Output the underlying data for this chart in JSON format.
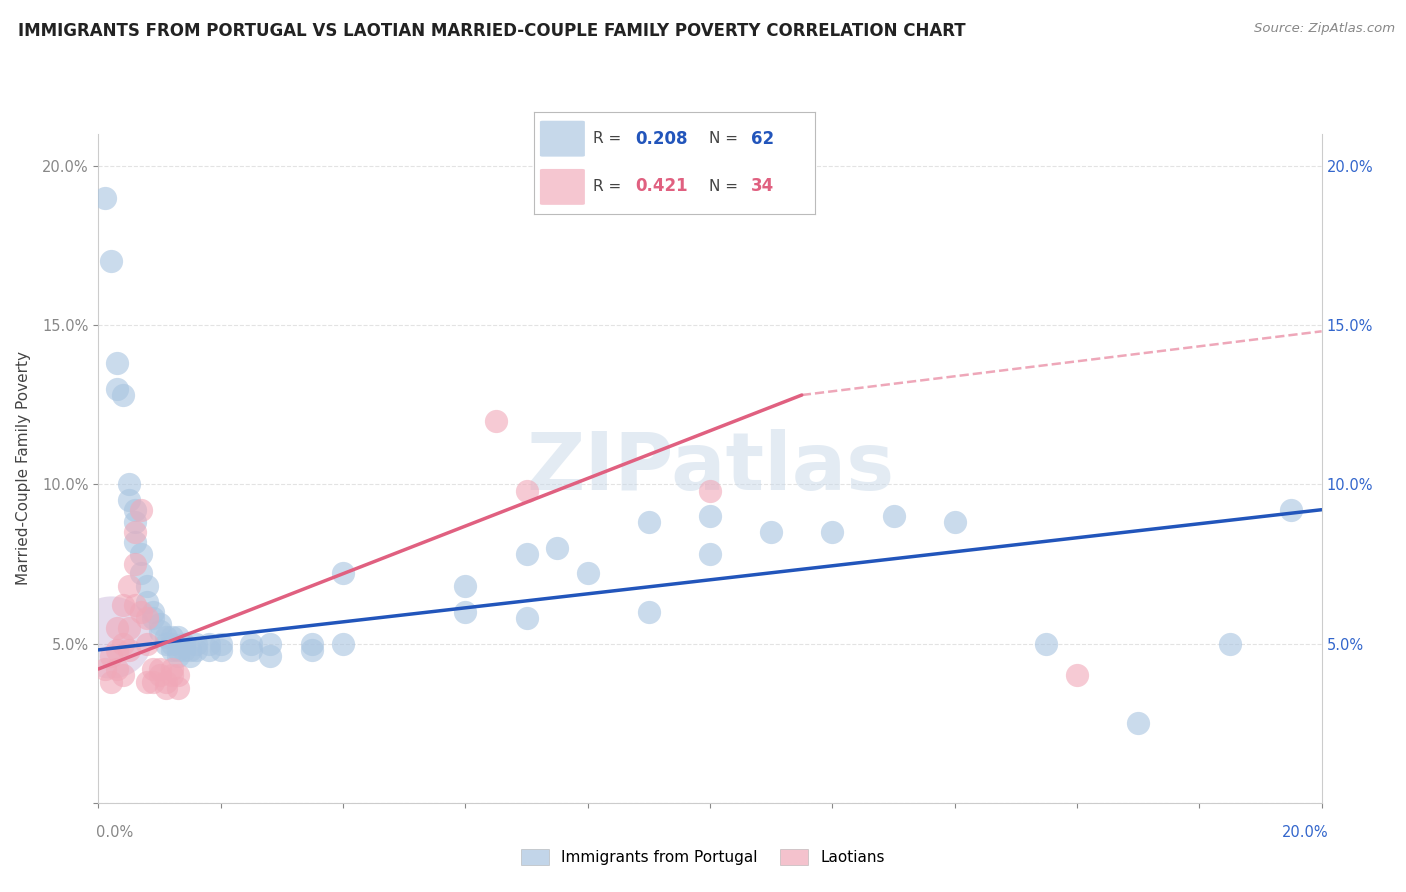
{
  "title": "IMMIGRANTS FROM PORTUGAL VS LAOTIAN MARRIED-COUPLE FAMILY POVERTY CORRELATION CHART",
  "source": "Source: ZipAtlas.com",
  "ylabel": "Married-Couple Family Poverty",
  "xlabel": "",
  "xlim": [
    0.0,
    0.2
  ],
  "ylim": [
    0.0,
    0.21
  ],
  "background_color": "#ffffff",
  "watermark_text": "ZIPatlas",
  "watermark_color": "#c8d8e8",
  "blue_color": "#a8c4e0",
  "pink_color": "#f0a8b8",
  "blue_line_color": "#2255bb",
  "pink_line_color": "#e06080",
  "blue_scatter": [
    [
      0.001,
      0.19
    ],
    [
      0.002,
      0.17
    ],
    [
      0.003,
      0.138
    ],
    [
      0.003,
      0.13
    ],
    [
      0.004,
      0.128
    ],
    [
      0.005,
      0.1
    ],
    [
      0.005,
      0.095
    ],
    [
      0.006,
      0.092
    ],
    [
      0.006,
      0.088
    ],
    [
      0.006,
      0.082
    ],
    [
      0.007,
      0.078
    ],
    [
      0.007,
      0.072
    ],
    [
      0.008,
      0.068
    ],
    [
      0.008,
      0.063
    ],
    [
      0.009,
      0.06
    ],
    [
      0.009,
      0.058
    ],
    [
      0.01,
      0.056
    ],
    [
      0.01,
      0.054
    ],
    [
      0.011,
      0.052
    ],
    [
      0.011,
      0.05
    ],
    [
      0.012,
      0.052
    ],
    [
      0.012,
      0.05
    ],
    [
      0.012,
      0.048
    ],
    [
      0.013,
      0.052
    ],
    [
      0.013,
      0.048
    ],
    [
      0.013,
      0.046
    ],
    [
      0.014,
      0.05
    ],
    [
      0.014,
      0.048
    ],
    [
      0.015,
      0.048
    ],
    [
      0.015,
      0.046
    ],
    [
      0.016,
      0.05
    ],
    [
      0.016,
      0.048
    ],
    [
      0.018,
      0.05
    ],
    [
      0.018,
      0.048
    ],
    [
      0.02,
      0.05
    ],
    [
      0.02,
      0.048
    ],
    [
      0.025,
      0.05
    ],
    [
      0.025,
      0.048
    ],
    [
      0.028,
      0.05
    ],
    [
      0.028,
      0.046
    ],
    [
      0.035,
      0.05
    ],
    [
      0.035,
      0.048
    ],
    [
      0.04,
      0.072
    ],
    [
      0.04,
      0.05
    ],
    [
      0.06,
      0.068
    ],
    [
      0.06,
      0.06
    ],
    [
      0.07,
      0.078
    ],
    [
      0.07,
      0.058
    ],
    [
      0.075,
      0.08
    ],
    [
      0.08,
      0.072
    ],
    [
      0.09,
      0.088
    ],
    [
      0.09,
      0.06
    ],
    [
      0.1,
      0.09
    ],
    [
      0.1,
      0.078
    ],
    [
      0.11,
      0.085
    ],
    [
      0.12,
      0.085
    ],
    [
      0.13,
      0.09
    ],
    [
      0.14,
      0.088
    ],
    [
      0.155,
      0.05
    ],
    [
      0.17,
      0.025
    ],
    [
      0.185,
      0.05
    ],
    [
      0.195,
      0.092
    ]
  ],
  "pink_scatter": [
    [
      0.001,
      0.042
    ],
    [
      0.002,
      0.046
    ],
    [
      0.002,
      0.038
    ],
    [
      0.003,
      0.055
    ],
    [
      0.003,
      0.048
    ],
    [
      0.003,
      0.042
    ],
    [
      0.004,
      0.062
    ],
    [
      0.004,
      0.05
    ],
    [
      0.004,
      0.04
    ],
    [
      0.005,
      0.068
    ],
    [
      0.005,
      0.055
    ],
    [
      0.005,
      0.048
    ],
    [
      0.006,
      0.085
    ],
    [
      0.006,
      0.075
    ],
    [
      0.006,
      0.062
    ],
    [
      0.007,
      0.092
    ],
    [
      0.007,
      0.06
    ],
    [
      0.008,
      0.058
    ],
    [
      0.008,
      0.05
    ],
    [
      0.008,
      0.038
    ],
    [
      0.009,
      0.042
    ],
    [
      0.009,
      0.038
    ],
    [
      0.01,
      0.042
    ],
    [
      0.01,
      0.04
    ],
    [
      0.011,
      0.038
    ],
    [
      0.011,
      0.036
    ],
    [
      0.012,
      0.042
    ],
    [
      0.012,
      0.04
    ],
    [
      0.013,
      0.04
    ],
    [
      0.013,
      0.036
    ],
    [
      0.065,
      0.12
    ],
    [
      0.07,
      0.098
    ],
    [
      0.1,
      0.098
    ],
    [
      0.16,
      0.04
    ]
  ],
  "blue_trendline": [
    [
      0.0,
      0.048
    ],
    [
      0.2,
      0.092
    ]
  ],
  "pink_trendline": [
    [
      0.0,
      0.042
    ],
    [
      0.115,
      0.128
    ]
  ],
  "pink_trendline_dashed": [
    [
      0.115,
      0.128
    ],
    [
      0.2,
      0.148
    ]
  ],
  "grid_color": "#dddddd",
  "tick_color": "#888888",
  "right_tick_color": "#3366CC"
}
